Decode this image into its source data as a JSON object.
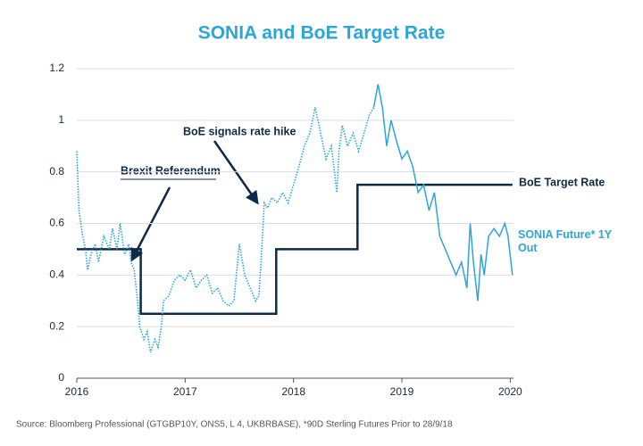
{
  "chart_data": {
    "type": "line",
    "title": "SONIA and BoE Target Rate",
    "annotations": [
      "BoE signals rate hike",
      "Brexit Referendum"
    ],
    "source": "Source: Bloomberg Professional (GTGBP10Y, ONS5, L 4, UKBRBASE), *90D Sterling Futures Prior to 28/9/18",
    "xlim": [
      2016,
      2020.03
    ],
    "xticks": [
      2016,
      2017,
      2018,
      2019,
      2020
    ],
    "ylim": [
      0,
      1.2
    ],
    "yticks": [
      0,
      0.2,
      0.4,
      0.6,
      0.8,
      1,
      1.2
    ],
    "grid": true,
    "series": [
      {
        "name": "BoE Target Rate",
        "color": "#0f2a47",
        "x": [
          2016,
          2016.59,
          2016.59,
          2017.84,
          2017.84,
          2018.59,
          2018.59,
          2020.02
        ],
        "values": [
          0.5,
          0.5,
          0.25,
          0.25,
          0.5,
          0.5,
          0.75,
          0.75
        ]
      },
      {
        "name": "SONIA Future* 1Y Out",
        "color": "#2aa6d8",
        "dotted_before": 2018.74,
        "x": [
          2016.0,
          2016.02,
          2016.05,
          2016.08,
          2016.1,
          2016.13,
          2016.17,
          2016.2,
          2016.25,
          2016.3,
          2016.33,
          2016.37,
          2016.4,
          2016.44,
          2016.48,
          2016.5,
          2016.53,
          2016.56,
          2016.58,
          2016.62,
          2016.65,
          2016.68,
          2016.72,
          2016.75,
          2016.78,
          2016.8,
          2016.85,
          2016.9,
          2016.95,
          2017.0,
          2017.05,
          2017.1,
          2017.15,
          2017.2,
          2017.25,
          2017.3,
          2017.35,
          2017.4,
          2017.45,
          2017.5,
          2017.55,
          2017.6,
          2017.65,
          2017.68,
          2017.7,
          2017.73,
          2017.76,
          2017.8,
          2017.85,
          2017.9,
          2017.95,
          2018.0,
          2018.05,
          2018.1,
          2018.15,
          2018.2,
          2018.25,
          2018.3,
          2018.35,
          2018.4,
          2018.42,
          2018.45,
          2018.5,
          2018.55,
          2018.6,
          2018.65,
          2018.7,
          2018.74,
          2018.78,
          2018.82,
          2018.86,
          2018.9,
          2018.95,
          2019.0,
          2019.05,
          2019.1,
          2019.15,
          2019.2,
          2019.25,
          2019.3,
          2019.35,
          2019.4,
          2019.45,
          2019.5,
          2019.55,
          2019.6,
          2019.63,
          2019.66,
          2019.7,
          2019.73,
          2019.76,
          2019.8,
          2019.85,
          2019.9,
          2019.95,
          2019.98,
          2020.02
        ],
        "values": [
          0.88,
          0.65,
          0.56,
          0.5,
          0.42,
          0.48,
          0.52,
          0.45,
          0.55,
          0.5,
          0.58,
          0.5,
          0.6,
          0.48,
          0.52,
          0.45,
          0.42,
          0.3,
          0.2,
          0.15,
          0.18,
          0.1,
          0.15,
          0.12,
          0.2,
          0.3,
          0.32,
          0.38,
          0.4,
          0.38,
          0.42,
          0.35,
          0.38,
          0.4,
          0.33,
          0.35,
          0.3,
          0.28,
          0.3,
          0.52,
          0.4,
          0.35,
          0.3,
          0.32,
          0.45,
          0.68,
          0.66,
          0.7,
          0.68,
          0.72,
          0.68,
          0.75,
          0.82,
          0.9,
          0.95,
          1.05,
          0.95,
          0.85,
          0.9,
          0.72,
          0.88,
          0.98,
          0.9,
          0.95,
          0.88,
          0.95,
          1.02,
          1.05,
          1.14,
          1.05,
          0.9,
          1.0,
          0.92,
          0.85,
          0.88,
          0.82,
          0.72,
          0.75,
          0.65,
          0.72,
          0.55,
          0.5,
          0.45,
          0.4,
          0.45,
          0.35,
          0.6,
          0.45,
          0.3,
          0.48,
          0.4,
          0.55,
          0.58,
          0.55,
          0.6,
          0.55,
          0.4
        ]
      }
    ]
  }
}
